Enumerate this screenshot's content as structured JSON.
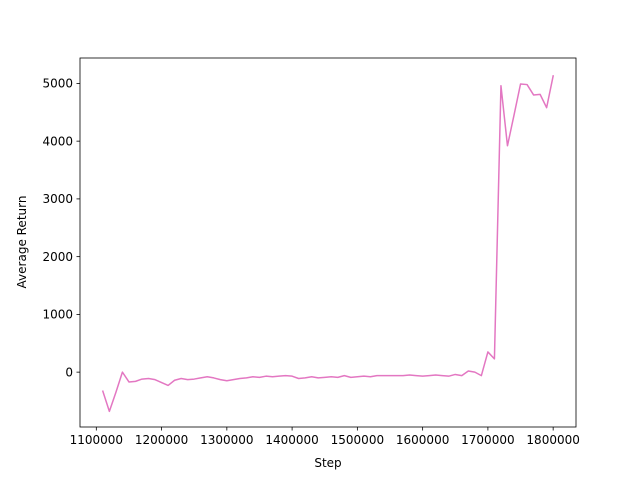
{
  "chart_data": {
    "type": "line",
    "title": "",
    "xlabel": "Step",
    "ylabel": "Average Return",
    "xlim": [
      1075000,
      1835000
    ],
    "ylim": [
      -950,
      5440
    ],
    "xticks": [
      1100000,
      1200000,
      1300000,
      1400000,
      1500000,
      1600000,
      1700000,
      1800000
    ],
    "xtick_labels": [
      "1100000",
      "1200000",
      "1300000",
      "1400000",
      "1500000",
      "1600000",
      "1700000",
      "1800000"
    ],
    "yticks": [
      0,
      1000,
      2000,
      3000,
      4000,
      5000
    ],
    "ytick_labels": [
      "0",
      "1000",
      "2000",
      "3000",
      "4000",
      "5000"
    ],
    "grid": false,
    "legend": "none",
    "series": [
      {
        "color": "#e377c2",
        "x": [
          1110000,
          1120000,
          1130000,
          1140000,
          1150000,
          1160000,
          1170000,
          1180000,
          1190000,
          1200000,
          1210000,
          1220000,
          1230000,
          1240000,
          1250000,
          1260000,
          1270000,
          1280000,
          1290000,
          1300000,
          1310000,
          1320000,
          1330000,
          1340000,
          1350000,
          1360000,
          1370000,
          1380000,
          1390000,
          1400000,
          1410000,
          1420000,
          1430000,
          1440000,
          1450000,
          1460000,
          1470000,
          1480000,
          1490000,
          1500000,
          1510000,
          1520000,
          1530000,
          1540000,
          1550000,
          1560000,
          1570000,
          1580000,
          1590000,
          1600000,
          1610000,
          1620000,
          1630000,
          1640000,
          1650000,
          1660000,
          1670000,
          1680000,
          1690000,
          1700000,
          1710000,
          1720000,
          1730000,
          1740000,
          1750000,
          1760000,
          1770000,
          1780000,
          1790000,
          1800000
        ],
        "y": [
          -330,
          -680,
          -350,
          0,
          -170,
          -160,
          -120,
          -110,
          -130,
          -180,
          -230,
          -140,
          -110,
          -130,
          -120,
          -100,
          -80,
          -100,
          -130,
          -150,
          -130,
          -110,
          -100,
          -80,
          -90,
          -70,
          -80,
          -70,
          -60,
          -70,
          -110,
          -100,
          -80,
          -100,
          -90,
          -80,
          -90,
          -60,
          -90,
          -80,
          -70,
          -80,
          -60,
          -60,
          -60,
          -60,
          -60,
          -50,
          -60,
          -70,
          -60,
          -50,
          -60,
          -70,
          -40,
          -60,
          20,
          0,
          -60,
          350,
          230,
          4960,
          3920,
          4450,
          4990,
          4980,
          4800,
          4810,
          4580,
          5130
        ]
      }
    ]
  }
}
